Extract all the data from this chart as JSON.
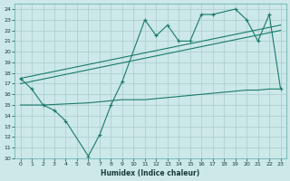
{
  "xlabel": "Humidex (Indice chaleur)",
  "xlim": [
    -0.5,
    23.5
  ],
  "ylim": [
    10,
    24.5
  ],
  "yticks": [
    10,
    11,
    12,
    13,
    14,
    15,
    16,
    17,
    18,
    19,
    20,
    21,
    22,
    23,
    24
  ],
  "xticks": [
    0,
    1,
    2,
    3,
    4,
    5,
    6,
    7,
    8,
    9,
    10,
    11,
    12,
    13,
    14,
    15,
    16,
    17,
    18,
    19,
    20,
    21,
    22,
    23
  ],
  "bg_color": "#cce8e8",
  "line_color": "#1a7a6a",
  "grid_color": "#aacccc",
  "line1_x": [
    0,
    1,
    2,
    3,
    4,
    6,
    7,
    8,
    9,
    11,
    12,
    13,
    14,
    15,
    16,
    17,
    19,
    20,
    21,
    22,
    23
  ],
  "line1_y": [
    17.5,
    16.5,
    15.0,
    14.5,
    13.5,
    10.2,
    12.2,
    15.0,
    17.2,
    23.0,
    21.5,
    22.5,
    21.0,
    21.0,
    23.5,
    23.5,
    24.0,
    23.0,
    21.0,
    23.5,
    16.5
  ],
  "line2_x": [
    0,
    23
  ],
  "line2_y": [
    17.5,
    22.5
  ],
  "line3_x": [
    0,
    23
  ],
  "line3_y": [
    17.0,
    22.0
  ],
  "line4_x": [
    0,
    2,
    6,
    8,
    9,
    10,
    11,
    12,
    13,
    14,
    15,
    16,
    17,
    18,
    19,
    20,
    21,
    22,
    23
  ],
  "line4_y": [
    15.0,
    15.0,
    15.2,
    15.4,
    15.5,
    15.5,
    15.5,
    15.6,
    15.7,
    15.8,
    15.9,
    16.0,
    16.1,
    16.2,
    16.3,
    16.4,
    16.4,
    16.5,
    16.5
  ]
}
